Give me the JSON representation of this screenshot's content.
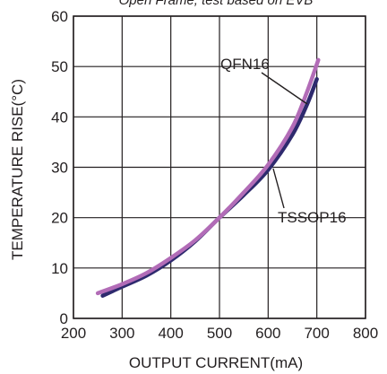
{
  "chart_data": {
    "type": "line",
    "title": "Open Frame, test based on EVB",
    "xlabel": "OUTPUT CURRENT(mA)",
    "ylabel": "TEMPERATURE RISE(°C)",
    "xlim": [
      200,
      800
    ],
    "ylim": [
      0,
      60
    ],
    "x_ticks": [
      "200",
      "300",
      "400",
      "500",
      "600",
      "700",
      "800"
    ],
    "y_ticks": [
      "0",
      "10",
      "20",
      "30",
      "40",
      "50",
      "60"
    ],
    "grid": true,
    "legend": "none",
    "series": [
      {
        "name": "TSSOP16",
        "color": "#2e2a6e",
        "x": [
          260,
          300,
          350,
          400,
          450,
          500,
          550,
          600,
          650,
          680,
          700
        ],
        "y": [
          4.5,
          6.3,
          8.5,
          11.5,
          15.3,
          20,
          24.5,
          29.5,
          36.5,
          42.5,
          47.5
        ]
      },
      {
        "name": "QFN16",
        "color": "#b26cb7",
        "x": [
          250,
          300,
          350,
          400,
          450,
          500,
          550,
          600,
          650,
          680,
          703
        ],
        "y": [
          5,
          6.8,
          9,
          12,
          15.5,
          20,
          25,
          30.5,
          38,
          45,
          51.3
        ]
      }
    ],
    "annotations": [
      {
        "text": "QFN16"
      },
      {
        "text": "TSSOP16"
      }
    ]
  }
}
